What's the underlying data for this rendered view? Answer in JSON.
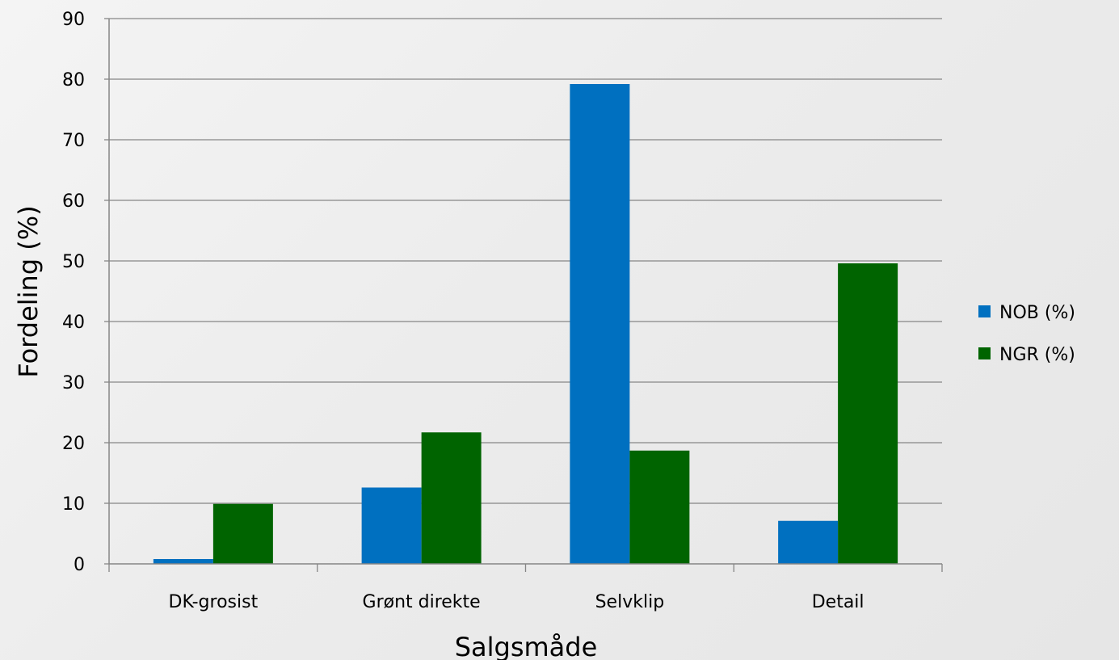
{
  "chart_data": {
    "type": "bar",
    "title": "",
    "xlabel": "Salgsmåde",
    "ylabel": "Fordeling (%)",
    "categories": [
      "DK-grosist",
      "Grønt direkte",
      "Selvklip",
      "Detail"
    ],
    "series": [
      {
        "name": "NOB (%)",
        "color": "#0070c0",
        "values": [
          0.8,
          12.6,
          79.2,
          7.1
        ]
      },
      {
        "name": "NGR (%)",
        "color": "#006400",
        "values": [
          9.9,
          21.7,
          18.7,
          49.6
        ]
      }
    ],
    "ylim": [
      0,
      90
    ],
    "yticks": [
      "0",
      "10",
      "20",
      "30",
      "40",
      "50",
      "60",
      "70",
      "80",
      "90"
    ],
    "grid": true,
    "legend": "right"
  }
}
